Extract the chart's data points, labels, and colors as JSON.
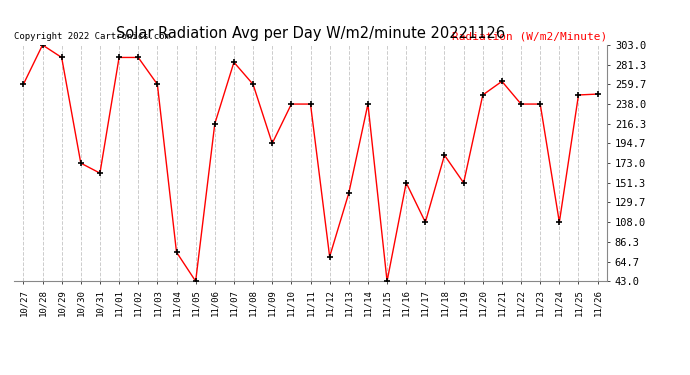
{
  "title": "Solar Radiation Avg per Day W/m2/minute 20221126",
  "copyright": "Copyright 2022 Cartronics.com",
  "ylabel": "Radiation (W/m2/Minute)",
  "labels": [
    "10/27",
    "10/28",
    "10/29",
    "10/30",
    "10/31",
    "11/01",
    "11/02",
    "11/03",
    "11/04",
    "11/05",
    "11/06",
    "11/07",
    "11/08",
    "11/09",
    "11/10",
    "11/11",
    "11/12",
    "11/13",
    "11/14",
    "11/15",
    "11/16",
    "11/17",
    "11/18",
    "11/19",
    "11/20",
    "11/21",
    "11/22",
    "11/23",
    "11/24",
    "11/25",
    "11/26"
  ],
  "values": [
    259.7,
    303.0,
    289.3,
    173.0,
    162.0,
    289.3,
    289.3,
    259.7,
    75.0,
    43.0,
    216.3,
    284.0,
    259.7,
    194.7,
    238.0,
    238.0,
    70.0,
    140.0,
    238.0,
    43.0,
    151.3,
    108.0,
    181.7,
    151.3,
    248.0,
    263.0,
    238.0,
    238.0,
    108.0,
    248.0,
    249.0
  ],
  "line_color": "red",
  "marker_color": "black",
  "bg_color": "white",
  "grid_color": "#cccccc",
  "title_color": "black",
  "ylabel_color": "red",
  "copyright_color": "black",
  "ylim": [
    43.0,
    303.0
  ],
  "yticks": [
    43.0,
    64.7,
    86.3,
    108.0,
    129.7,
    151.3,
    173.0,
    194.7,
    216.3,
    238.0,
    259.7,
    281.3,
    303.0
  ],
  "figwidth": 6.9,
  "figheight": 3.75,
  "dpi": 100
}
